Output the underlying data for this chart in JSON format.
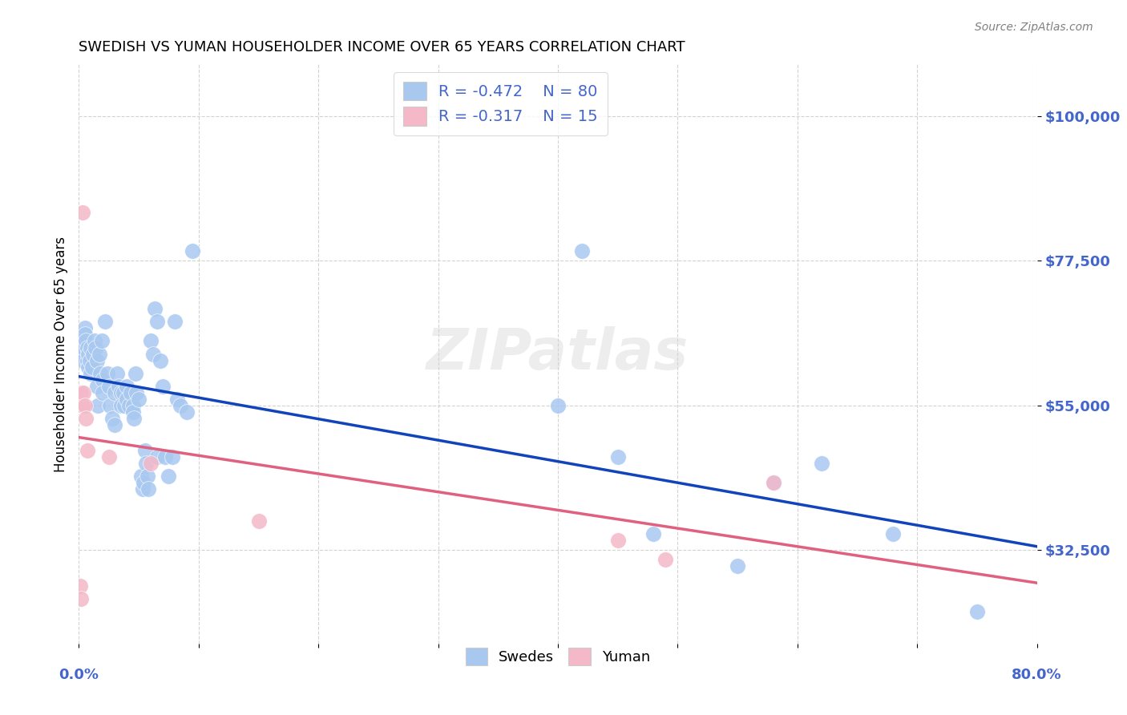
{
  "title": "SWEDISH VS YUMAN HOUSEHOLDER INCOME OVER 65 YEARS CORRELATION CHART",
  "source": "Source: ZipAtlas.com",
  "ylabel": "Householder Income Over 65 years",
  "watermark": "ZIPatlas",
  "xlim": [
    0.0,
    0.8
  ],
  "ylim": [
    18000,
    108000
  ],
  "yticks": [
    32500,
    55000,
    77500,
    100000
  ],
  "ytick_labels": [
    "$32,500",
    "$55,000",
    "$77,500",
    "$100,000"
  ],
  "blue_color": "#A8C8F0",
  "pink_color": "#F4B8C8",
  "line_blue": "#1144BB",
  "line_pink": "#E06080",
  "swedes_x": [
    0.002,
    0.003,
    0.003,
    0.004,
    0.005,
    0.005,
    0.006,
    0.007,
    0.007,
    0.008,
    0.008,
    0.009,
    0.01,
    0.01,
    0.011,
    0.012,
    0.013,
    0.014,
    0.015,
    0.015,
    0.016,
    0.017,
    0.018,
    0.019,
    0.02,
    0.02,
    0.022,
    0.024,
    0.025,
    0.026,
    0.028,
    0.03,
    0.03,
    0.032,
    0.033,
    0.035,
    0.035,
    0.037,
    0.038,
    0.04,
    0.04,
    0.042,
    0.043,
    0.045,
    0.045,
    0.046,
    0.047,
    0.048,
    0.05,
    0.052,
    0.053,
    0.054,
    0.055,
    0.056,
    0.057,
    0.058,
    0.06,
    0.062,
    0.063,
    0.065,
    0.065,
    0.068,
    0.07,
    0.072,
    0.075,
    0.078,
    0.08,
    0.082,
    0.085,
    0.09,
    0.095,
    0.4,
    0.42,
    0.45,
    0.48,
    0.55,
    0.58,
    0.62,
    0.68,
    0.75
  ],
  "swedes_y": [
    63000,
    65000,
    62000,
    64000,
    67000,
    66000,
    65000,
    64000,
    62000,
    61000,
    63000,
    62000,
    60000,
    64000,
    61000,
    63000,
    65000,
    64000,
    62000,
    58000,
    55000,
    63000,
    60000,
    65000,
    59000,
    57000,
    68000,
    60000,
    58000,
    55000,
    53000,
    57000,
    52000,
    60000,
    58000,
    57000,
    55000,
    57000,
    55000,
    58000,
    56000,
    55000,
    57000,
    55000,
    54000,
    53000,
    60000,
    57000,
    56000,
    44000,
    42000,
    43000,
    48000,
    46000,
    44000,
    42000,
    65000,
    63000,
    70000,
    68000,
    47000,
    62000,
    58000,
    47000,
    44000,
    47000,
    68000,
    56000,
    55000,
    54000,
    79000,
    55000,
    79000,
    47000,
    35000,
    30000,
    43000,
    46000,
    35000,
    23000
  ],
  "yuman_x": [
    0.001,
    0.002,
    0.002,
    0.003,
    0.003,
    0.004,
    0.005,
    0.006,
    0.007,
    0.025,
    0.06,
    0.15,
    0.45,
    0.49,
    0.58
  ],
  "yuman_y": [
    27000,
    25000,
    57000,
    55000,
    85000,
    57000,
    55000,
    53000,
    48000,
    47000,
    46000,
    37000,
    34000,
    31000,
    43000
  ],
  "legend_r_blue": "-0.472",
  "legend_n_blue": "80",
  "legend_r_pink": "-0.317",
  "legend_n_pink": "15",
  "tick_color": "#4466CC"
}
